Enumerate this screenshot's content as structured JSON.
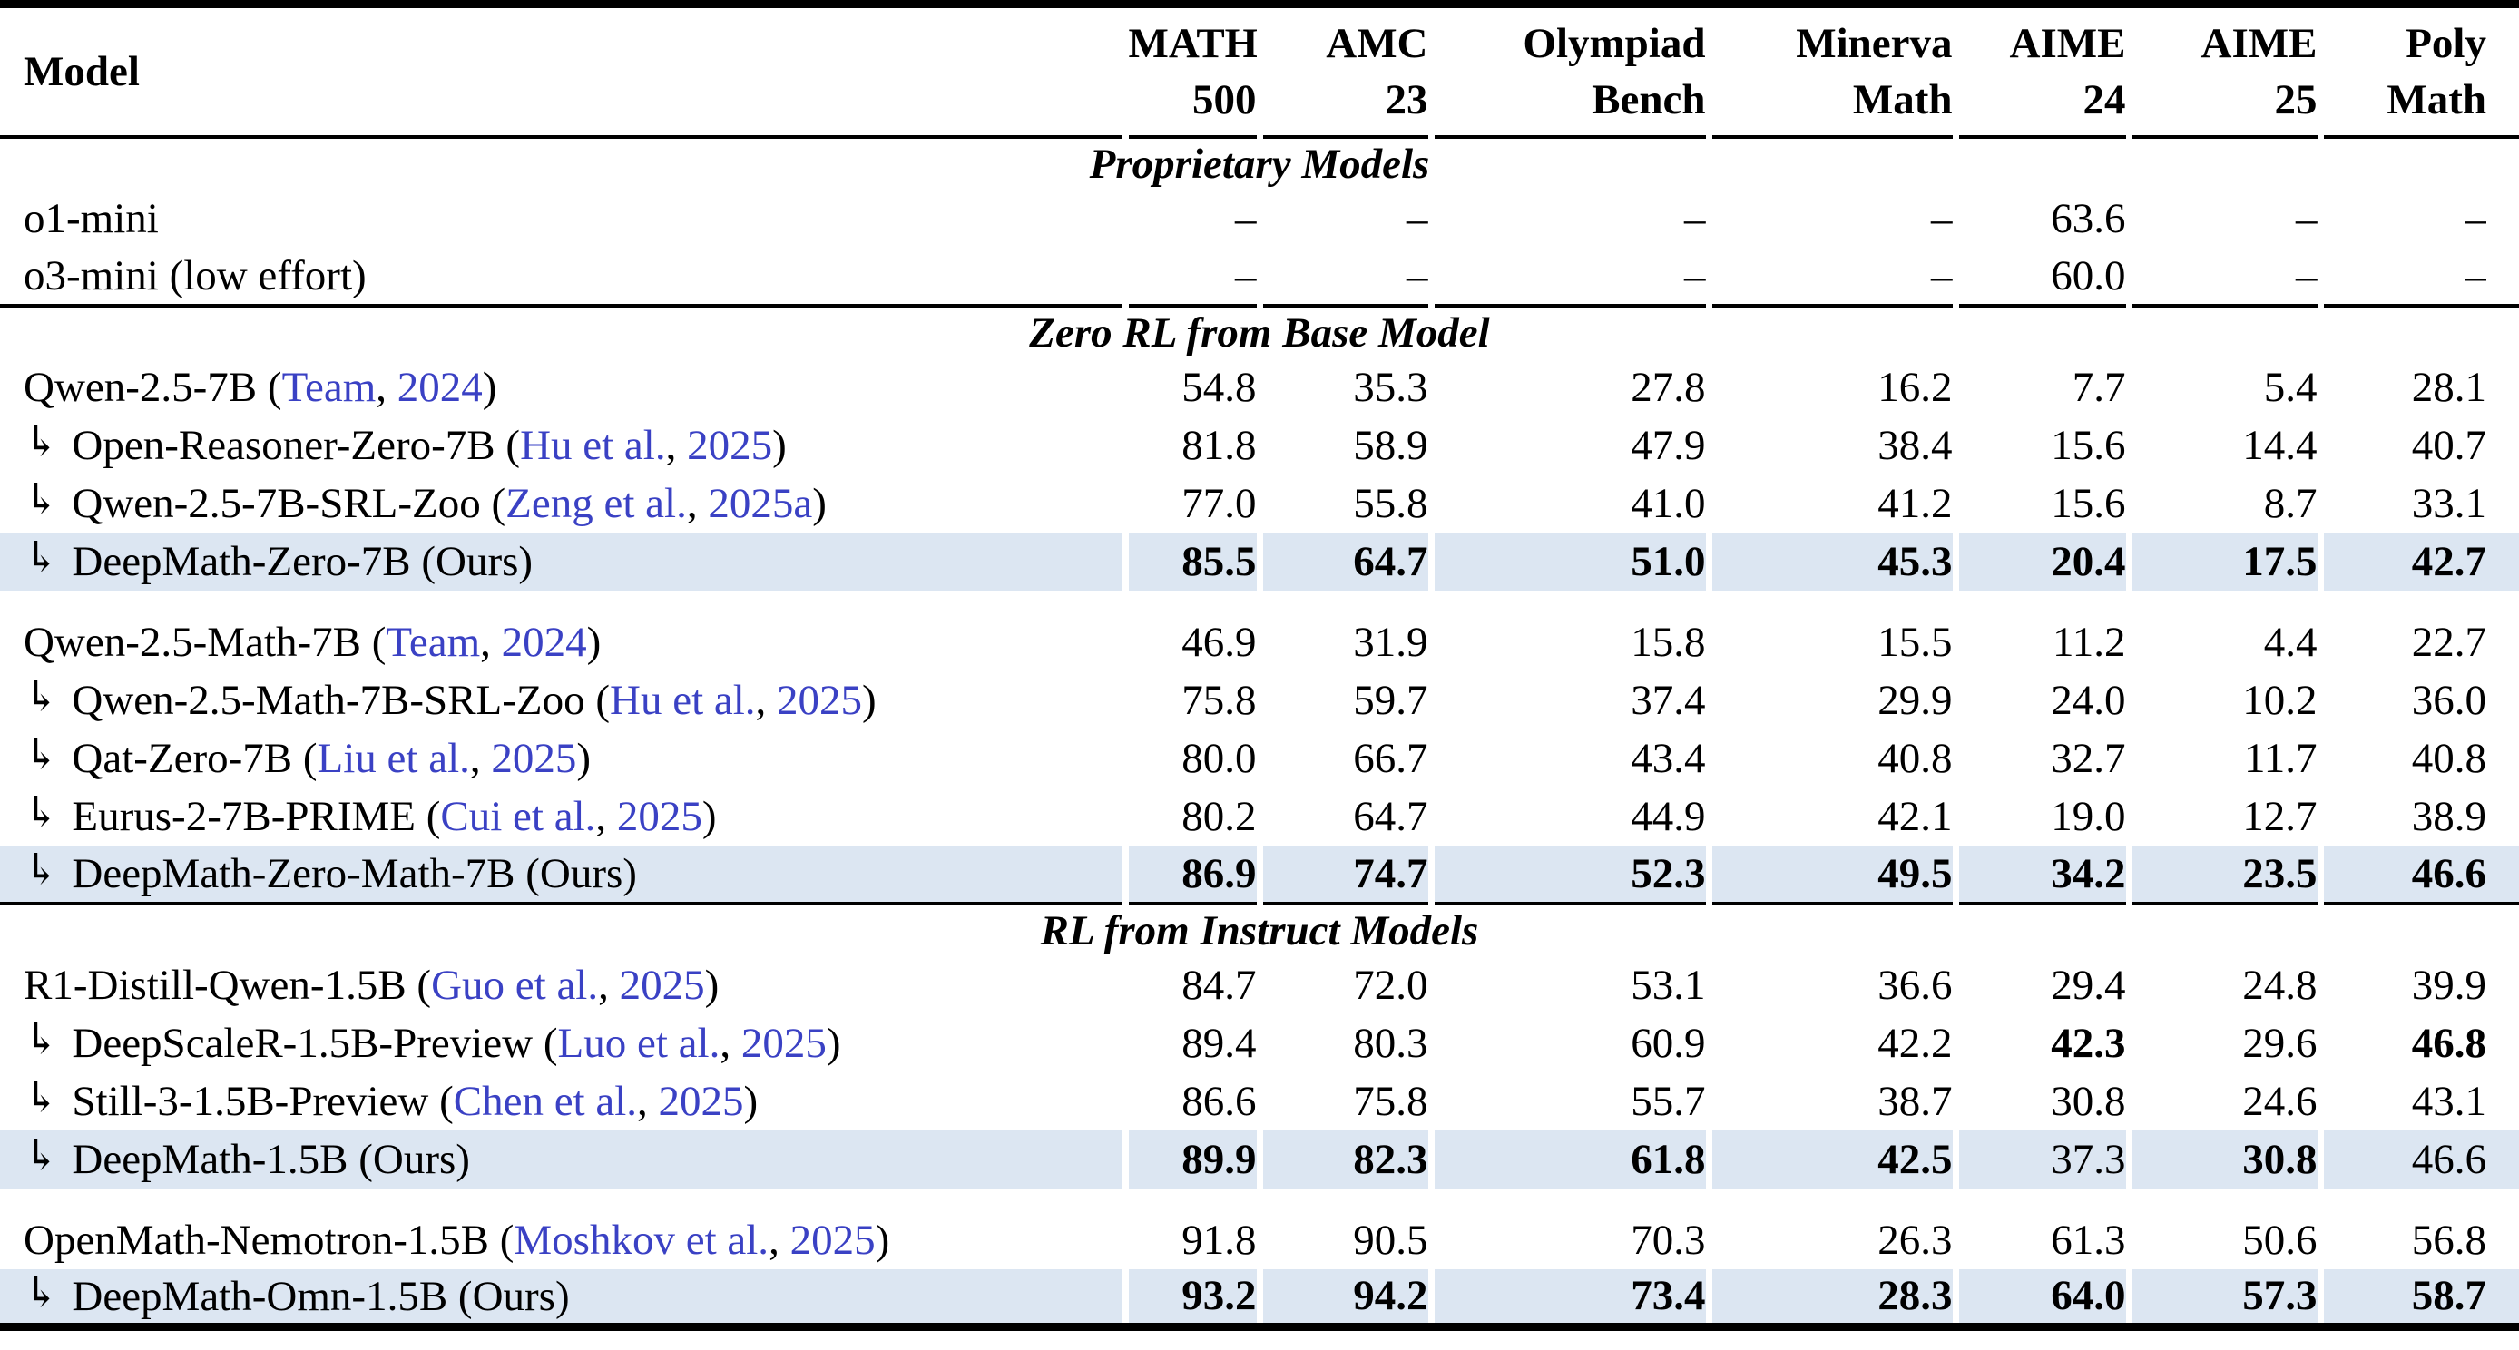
{
  "colors": {
    "row_highlight": "#dce6f2",
    "citation_link": "#3a41c4",
    "rule": "#000000",
    "text": "#000000"
  },
  "table": {
    "model_header": "Model",
    "indent_arrow": "↳",
    "dash": "–",
    "columns": [
      {
        "line1": "MATH",
        "line2": "500"
      },
      {
        "line1": "AMC",
        "line2": "23"
      },
      {
        "line1": "Olympiad",
        "line2": "Bench"
      },
      {
        "line1": "Minerva",
        "line2": "Math"
      },
      {
        "line1": "AIME",
        "line2": "24"
      },
      {
        "line1": "AIME",
        "line2": "25"
      },
      {
        "line1": "Poly",
        "line2": "Math"
      }
    ],
    "sections": [
      {
        "title": "Proprietary Models",
        "groups": [
          {
            "rows": [
              {
                "arrow": false,
                "name": "o1-mini",
                "cite": null,
                "ours": false,
                "highlight": false,
                "values": [
                  "–",
                  "–",
                  "–",
                  "–",
                  "63.6",
                  "–",
                  "–"
                ],
                "bold": [
                  false,
                  false,
                  false,
                  false,
                  false,
                  false,
                  false
                ]
              },
              {
                "arrow": false,
                "name": "o3-mini (low effort)",
                "cite": null,
                "ours": false,
                "highlight": false,
                "values": [
                  "–",
                  "–",
                  "–",
                  "–",
                  "60.0",
                  "–",
                  "–"
                ],
                "bold": [
                  false,
                  false,
                  false,
                  false,
                  false,
                  false,
                  false
                ]
              }
            ]
          }
        ]
      },
      {
        "title": "Zero RL from Base Model",
        "groups": [
          {
            "rows": [
              {
                "arrow": false,
                "name": "Qwen-2.5-7B",
                "cite": {
                  "author": "Team",
                  "year": "2024"
                },
                "ours": false,
                "highlight": false,
                "values": [
                  "54.8",
                  "35.3",
                  "27.8",
                  "16.2",
                  "7.7",
                  "5.4",
                  "28.1"
                ],
                "bold": [
                  false,
                  false,
                  false,
                  false,
                  false,
                  false,
                  false
                ]
              },
              {
                "arrow": true,
                "name": "Open-Reasoner-Zero-7B",
                "cite": {
                  "author": "Hu et al.",
                  "year": "2025"
                },
                "ours": false,
                "highlight": false,
                "values": [
                  "81.8",
                  "58.9",
                  "47.9",
                  "38.4",
                  "15.6",
                  "14.4",
                  "40.7"
                ],
                "bold": [
                  false,
                  false,
                  false,
                  false,
                  false,
                  false,
                  false
                ]
              },
              {
                "arrow": true,
                "name": "Qwen-2.5-7B-SRL-Zoo",
                "cite": {
                  "author": "Zeng et al.",
                  "year": "2025a"
                },
                "ours": false,
                "highlight": false,
                "values": [
                  "77.0",
                  "55.8",
                  "41.0",
                  "41.2",
                  "15.6",
                  "8.7",
                  "33.1"
                ],
                "bold": [
                  false,
                  false,
                  false,
                  false,
                  false,
                  false,
                  false
                ]
              },
              {
                "arrow": true,
                "name": "DeepMath-Zero-7B",
                "cite": null,
                "ours": true,
                "highlight": true,
                "values": [
                  "85.5",
                  "64.7",
                  "51.0",
                  "45.3",
                  "20.4",
                  "17.5",
                  "42.7"
                ],
                "bold": [
                  true,
                  true,
                  true,
                  true,
                  true,
                  true,
                  true
                ]
              }
            ]
          },
          {
            "rows": [
              {
                "arrow": false,
                "name": "Qwen-2.5-Math-7B",
                "cite": {
                  "author": "Team",
                  "year": "2024"
                },
                "ours": false,
                "highlight": false,
                "values": [
                  "46.9",
                  "31.9",
                  "15.8",
                  "15.5",
                  "11.2",
                  "4.4",
                  "22.7"
                ],
                "bold": [
                  false,
                  false,
                  false,
                  false,
                  false,
                  false,
                  false
                ]
              },
              {
                "arrow": true,
                "name": "Qwen-2.5-Math-7B-SRL-Zoo",
                "cite": {
                  "author": "Hu et al.",
                  "year": "2025"
                },
                "ours": false,
                "highlight": false,
                "values": [
                  "75.8",
                  "59.7",
                  "37.4",
                  "29.9",
                  "24.0",
                  "10.2",
                  "36.0"
                ],
                "bold": [
                  false,
                  false,
                  false,
                  false,
                  false,
                  false,
                  false
                ]
              },
              {
                "arrow": true,
                "name": "Qat-Zero-7B",
                "cite": {
                  "author": "Liu et al.",
                  "year": "2025"
                },
                "ours": false,
                "highlight": false,
                "values": [
                  "80.0",
                  "66.7",
                  "43.4",
                  "40.8",
                  "32.7",
                  "11.7",
                  "40.8"
                ],
                "bold": [
                  false,
                  false,
                  false,
                  false,
                  false,
                  false,
                  false
                ]
              },
              {
                "arrow": true,
                "name": "Eurus-2-7B-PRIME",
                "cite": {
                  "author": "Cui et al.",
                  "year": "2025"
                },
                "ours": false,
                "highlight": false,
                "values": [
                  "80.2",
                  "64.7",
                  "44.9",
                  "42.1",
                  "19.0",
                  "12.7",
                  "38.9"
                ],
                "bold": [
                  false,
                  false,
                  false,
                  false,
                  false,
                  false,
                  false
                ]
              },
              {
                "arrow": true,
                "name": "DeepMath-Zero-Math-7B",
                "cite": null,
                "ours": true,
                "highlight": true,
                "values": [
                  "86.9",
                  "74.7",
                  "52.3",
                  "49.5",
                  "34.2",
                  "23.5",
                  "46.6"
                ],
                "bold": [
                  true,
                  true,
                  true,
                  true,
                  true,
                  true,
                  true
                ]
              }
            ]
          }
        ]
      },
      {
        "title": "RL from Instruct Models",
        "groups": [
          {
            "rows": [
              {
                "arrow": false,
                "name": "R1-Distill-Qwen-1.5B",
                "cite": {
                  "author": "Guo et al.",
                  "year": "2025"
                },
                "ours": false,
                "highlight": false,
                "values": [
                  "84.7",
                  "72.0",
                  "53.1",
                  "36.6",
                  "29.4",
                  "24.8",
                  "39.9"
                ],
                "bold": [
                  false,
                  false,
                  false,
                  false,
                  false,
                  false,
                  false
                ]
              },
              {
                "arrow": true,
                "name": "DeepScaleR-1.5B-Preview",
                "cite": {
                  "author": "Luo et al.",
                  "year": "2025"
                },
                "ours": false,
                "highlight": false,
                "values": [
                  "89.4",
                  "80.3",
                  "60.9",
                  "42.2",
                  "42.3",
                  "29.6",
                  "46.8"
                ],
                "bold": [
                  false,
                  false,
                  false,
                  false,
                  true,
                  false,
                  true
                ]
              },
              {
                "arrow": true,
                "name": "Still-3-1.5B-Preview",
                "cite": {
                  "author": "Chen et al.",
                  "year": "2025"
                },
                "ours": false,
                "highlight": false,
                "values": [
                  "86.6",
                  "75.8",
                  "55.7",
                  "38.7",
                  "30.8",
                  "24.6",
                  "43.1"
                ],
                "bold": [
                  false,
                  false,
                  false,
                  false,
                  false,
                  false,
                  false
                ]
              },
              {
                "arrow": true,
                "name": "DeepMath-1.5B",
                "cite": null,
                "ours": true,
                "highlight": true,
                "values": [
                  "89.9",
                  "82.3",
                  "61.8",
                  "42.5",
                  "37.3",
                  "30.8",
                  "46.6"
                ],
                "bold": [
                  true,
                  true,
                  true,
                  true,
                  false,
                  true,
                  false
                ]
              }
            ]
          },
          {
            "rows": [
              {
                "arrow": false,
                "name": "OpenMath-Nemotron-1.5B",
                "cite": {
                  "author": "Moshkov et al.",
                  "year": "2025"
                },
                "ours": false,
                "highlight": false,
                "values": [
                  "91.8",
                  "90.5",
                  "70.3",
                  "26.3",
                  "61.3",
                  "50.6",
                  "56.8"
                ],
                "bold": [
                  false,
                  false,
                  false,
                  false,
                  false,
                  false,
                  false
                ]
              },
              {
                "arrow": true,
                "name": "DeepMath-Omn-1.5B",
                "cite": null,
                "ours": true,
                "highlight": true,
                "values": [
                  "93.2",
                  "94.2",
                  "73.4",
                  "28.3",
                  "64.0",
                  "57.3",
                  "58.7"
                ],
                "bold": [
                  true,
                  true,
                  true,
                  true,
                  true,
                  true,
                  true
                ]
              }
            ]
          }
        ]
      }
    ],
    "ours_label": "(Ours)"
  }
}
